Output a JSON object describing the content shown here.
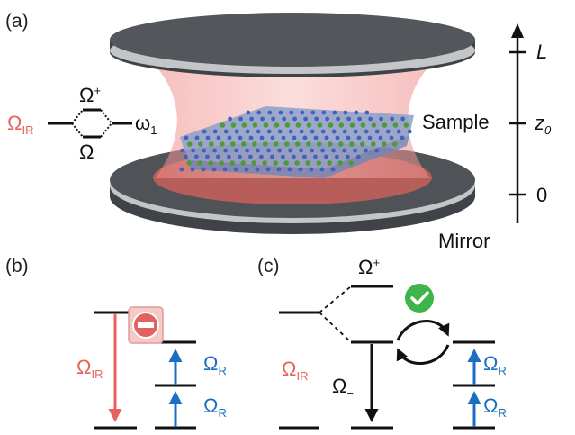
{
  "panels": {
    "a": {
      "label": "(a)",
      "coupling_left": "Ω",
      "coupling_left_sub": "IR",
      "upper_polariton": "Ω",
      "upper_polariton_sub": "+",
      "lower_polariton": "Ω",
      "lower_polariton_sub": "−",
      "cavity_mode": "ω",
      "cavity_mode_sub": "1",
      "sample_label": "Sample",
      "mirror_label": "Mirror",
      "axis_top": "L",
      "axis_mid": "z",
      "axis_mid_sub": "0",
      "axis_bottom": "0"
    },
    "b": {
      "label": "(b)",
      "ir_label": "Ω",
      "ir_sub": "IR",
      "raman_label": "Ω",
      "raman_sub": "R",
      "forbidden_icon": "minus-circle-icon"
    },
    "c": {
      "label": "(c)",
      "upper_label": "Ω",
      "upper_sub": "+",
      "lower_label": "Ω",
      "lower_sub": "−",
      "ir_label": "Ω",
      "ir_sub": "IR",
      "raman_label": "Ω",
      "raman_sub": "R",
      "allowed_icon": "check-circle-icon"
    }
  },
  "colors": {
    "ir": "#e8625d",
    "raman": "#1a6fc2",
    "mirror": "#4a4e54",
    "mirror_rim": "#b9bcbf",
    "beam": "#f2a3a0",
    "check": "#3db54a",
    "forbidden": "#e26260"
  }
}
